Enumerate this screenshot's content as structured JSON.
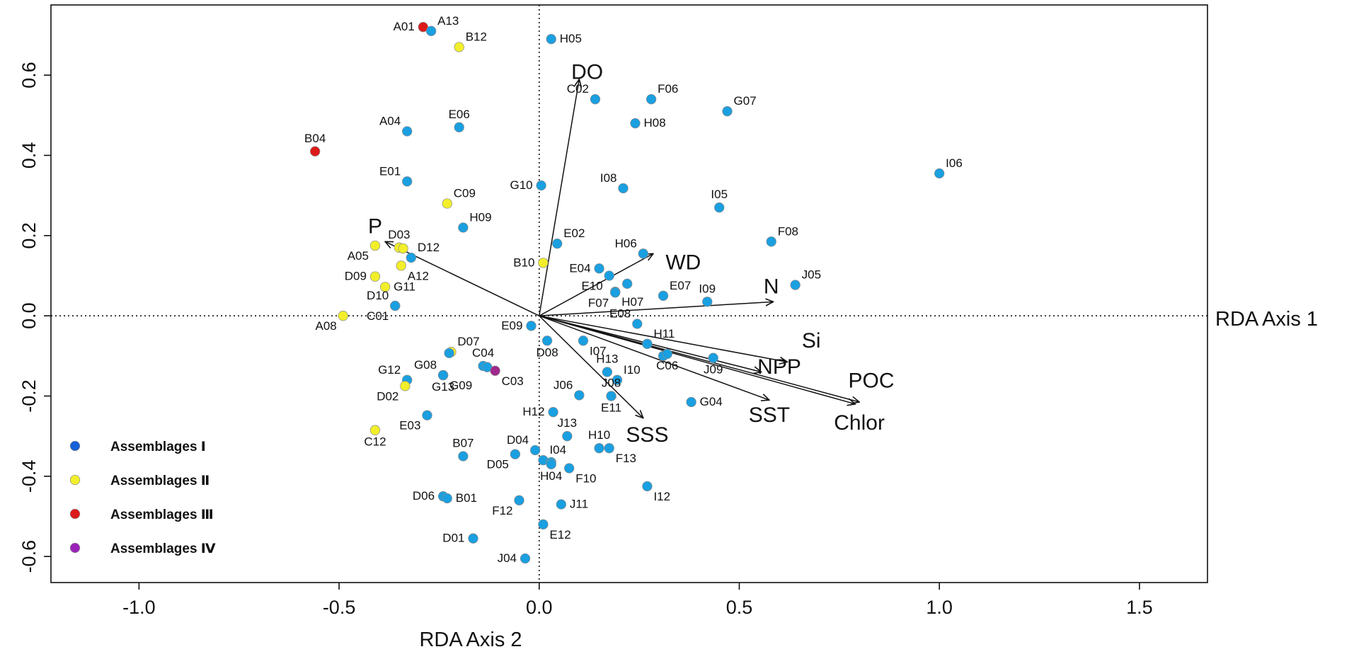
{
  "chart_data": {
    "type": "scatter",
    "title": "",
    "xlabel": "RDA Axis 2",
    "ylabel": "RDA Axis 1",
    "xlim": [
      -1.22,
      1.67
    ],
    "ylim": [
      -0.665,
      0.775
    ],
    "xticks": [
      {
        "value": -1.0,
        "label": "-1.0"
      },
      {
        "value": -0.5,
        "label": "-0.5"
      },
      {
        "value": 0.0,
        "label": "0.0"
      },
      {
        "value": 0.5,
        "label": "0.5"
      },
      {
        "value": 1.0,
        "label": "1.0"
      },
      {
        "value": 1.5,
        "label": "1.5"
      }
    ],
    "yticks": [
      {
        "value": -0.6,
        "label": "-0.6"
      },
      {
        "value": -0.4,
        "label": "-0.4"
      },
      {
        "value": -0.2,
        "label": "-0.2"
      },
      {
        "value": 0.0,
        "label": "0.0"
      },
      {
        "value": 0.2,
        "label": "0.2"
      },
      {
        "value": 0.4,
        "label": "0.4"
      },
      {
        "value": 0.6,
        "label": "0.6"
      }
    ],
    "reference_lines": {
      "x": 0,
      "y": 0,
      "style": "dotted"
    },
    "groups": [
      {
        "id": "I",
        "name": "Assemblages Ⅰ",
        "color": "#1a9fe0",
        "legend_color": "#1560d8"
      },
      {
        "id": "II",
        "name": "Assemblages Ⅱ",
        "color": "#f2ef2a",
        "legend_color": "#f2ef2a"
      },
      {
        "id": "III",
        "name": "Assemblages Ⅲ",
        "color": "#dd1a1a",
        "legend_color": "#dd1a1a"
      },
      {
        "id": "IV",
        "name": "Assemblages Ⅳ",
        "color": "#a0288c",
        "legend_color": "#9a22b8"
      }
    ],
    "legend_position": "bottom-left",
    "points": [
      {
        "label": "A01",
        "x": -0.29,
        "y": 0.72,
        "group": "III",
        "anchor": "w"
      },
      {
        "label": "A13",
        "x": -0.27,
        "y": 0.71,
        "group": "I",
        "anchor": "ne"
      },
      {
        "label": "B12",
        "x": -0.2,
        "y": 0.67,
        "group": "II",
        "anchor": "ne"
      },
      {
        "label": "H05",
        "x": 0.03,
        "y": 0.69,
        "group": "I",
        "anchor": "e"
      },
      {
        "label": "C02",
        "x": 0.14,
        "y": 0.54,
        "group": "I",
        "anchor": "nw"
      },
      {
        "label": "F06",
        "x": 0.28,
        "y": 0.54,
        "group": "I",
        "anchor": "ne"
      },
      {
        "label": "H08",
        "x": 0.24,
        "y": 0.48,
        "group": "I",
        "anchor": "e"
      },
      {
        "label": "G07",
        "x": 0.47,
        "y": 0.51,
        "group": "I",
        "anchor": "ne"
      },
      {
        "label": "A04",
        "x": -0.33,
        "y": 0.46,
        "group": "I",
        "anchor": "nw"
      },
      {
        "label": "E06",
        "x": -0.2,
        "y": 0.47,
        "group": "I",
        "anchor": "n"
      },
      {
        "label": "B04",
        "x": -0.56,
        "y": 0.41,
        "group": "III",
        "anchor": "n"
      },
      {
        "label": "I06",
        "x": 1.0,
        "y": 0.355,
        "group": "I",
        "anchor": "ne"
      },
      {
        "label": "E01",
        "x": -0.33,
        "y": 0.335,
        "group": "I",
        "anchor": "nw"
      },
      {
        "label": "C09",
        "x": -0.23,
        "y": 0.28,
        "group": "II",
        "anchor": "ne"
      },
      {
        "label": "G10",
        "x": 0.005,
        "y": 0.325,
        "group": "I",
        "anchor": "w"
      },
      {
        "label": "I08",
        "x": 0.21,
        "y": 0.318,
        "group": "I",
        "anchor": "nw"
      },
      {
        "label": "I05",
        "x": 0.45,
        "y": 0.27,
        "group": "I",
        "anchor": "n"
      },
      {
        "label": "H09",
        "x": -0.19,
        "y": 0.22,
        "group": "I",
        "anchor": "ne"
      },
      {
        "label": "F08",
        "x": 0.58,
        "y": 0.185,
        "group": "I",
        "anchor": "ne"
      },
      {
        "label": "D03",
        "x": -0.35,
        "y": 0.17,
        "group": "II",
        "anchor": "n"
      },
      {
        "label": "D12",
        "x": -0.32,
        "y": 0.145,
        "group": "I",
        "anchor": "ne"
      },
      {
        "label": "E02",
        "x": 0.045,
        "y": 0.18,
        "group": "I",
        "anchor": "ne"
      },
      {
        "label": "A05",
        "x": -0.41,
        "y": 0.175,
        "group": "II",
        "anchor": "sw"
      },
      {
        "label": "",
        "x": -0.34,
        "y": 0.168,
        "group": "II",
        "anchor": "n"
      },
      {
        "label": "A12",
        "x": -0.345,
        "y": 0.125,
        "group": "II",
        "anchor": "se"
      },
      {
        "label": "B10",
        "x": 0.01,
        "y": 0.132,
        "group": "II",
        "anchor": "w"
      },
      {
        "label": "H06",
        "x": 0.26,
        "y": 0.155,
        "group": "I",
        "anchor": "nw"
      },
      {
        "label": "E04",
        "x": 0.15,
        "y": 0.118,
        "group": "I",
        "anchor": "w"
      },
      {
        "label": "J05",
        "x": 0.64,
        "y": 0.077,
        "group": "I",
        "anchor": "ne"
      },
      {
        "label": "D09",
        "x": -0.41,
        "y": 0.098,
        "group": "II",
        "anchor": "w"
      },
      {
        "label": "G11",
        "x": -0.385,
        "y": 0.072,
        "group": "II",
        "anchor": "e"
      },
      {
        "label": "E10",
        "x": 0.175,
        "y": 0.1,
        "group": "I",
        "anchor": "sw"
      },
      {
        "label": "",
        "x": 0.22,
        "y": 0.08,
        "group": "I",
        "anchor": "n"
      },
      {
        "label": "H07",
        "x": 0.19,
        "y": 0.06,
        "group": "I",
        "anchor": "se"
      },
      {
        "label": "E07",
        "x": 0.31,
        "y": 0.05,
        "group": "I",
        "anchor": "ne"
      },
      {
        "label": "I09",
        "x": 0.42,
        "y": 0.035,
        "group": "I",
        "anchor": "n"
      },
      {
        "label": "F07",
        "x": 0.19,
        "y": 0.058,
        "group": "I",
        "anchor": "sw"
      },
      {
        "label": "D10",
        "x": -0.36,
        "y": 0.025,
        "group": "I",
        "anchor": "nw"
      },
      {
        "label": "A08",
        "x": -0.49,
        "y": 0.0,
        "group": "II",
        "anchor": "sw"
      },
      {
        "label": "C01",
        "x": -0.36,
        "y": 0.025,
        "group": "I",
        "anchor": "sw"
      },
      {
        "label": "E09",
        "x": -0.02,
        "y": -0.025,
        "group": "I",
        "anchor": "w"
      },
      {
        "label": "E08",
        "x": 0.245,
        "y": -0.02,
        "group": "I",
        "anchor": "nw"
      },
      {
        "label": "H11",
        "x": 0.27,
        "y": -0.07,
        "group": "I",
        "anchor": "ne"
      },
      {
        "label": "D07",
        "x": -0.22,
        "y": -0.09,
        "group": "II",
        "anchor": "ne"
      },
      {
        "label": "",
        "x": -0.225,
        "y": -0.093,
        "group": "I",
        "anchor": "n"
      },
      {
        "label": "I07",
        "x": 0.11,
        "y": -0.062,
        "group": "I",
        "anchor": "se"
      },
      {
        "label": "D08",
        "x": 0.02,
        "y": -0.062,
        "group": "I",
        "anchor": "s"
      },
      {
        "label": "",
        "x": 0.31,
        "y": -0.1,
        "group": "I",
        "anchor": "n"
      },
      {
        "label": "C06",
        "x": 0.32,
        "y": -0.095,
        "group": "I",
        "anchor": "s"
      },
      {
        "label": "J09",
        "x": 0.435,
        "y": -0.105,
        "group": "I",
        "anchor": "s"
      },
      {
        "label": "C04",
        "x": -0.14,
        "y": -0.125,
        "group": "I",
        "anchor": "n"
      },
      {
        "label": "",
        "x": -0.13,
        "y": -0.128,
        "group": "I",
        "anchor": "n"
      },
      {
        "label": "C03",
        "x": -0.11,
        "y": -0.137,
        "group": "IV",
        "anchor": "se"
      },
      {
        "label": "G08",
        "x": -0.24,
        "y": -0.148,
        "group": "I",
        "anchor": "nw"
      },
      {
        "label": "H13",
        "x": 0.17,
        "y": -0.14,
        "group": "I",
        "anchor": "n"
      },
      {
        "label": "I10",
        "x": 0.195,
        "y": -0.16,
        "group": "I",
        "anchor": "ne"
      },
      {
        "label": "G12",
        "x": -0.33,
        "y": -0.16,
        "group": "I",
        "anchor": "nw"
      },
      {
        "label": "G09",
        "x": -0.24,
        "y": -0.148,
        "group": "I",
        "anchor": "se"
      },
      {
        "label": "D02",
        "x": -0.335,
        "y": -0.175,
        "group": "II",
        "anchor": "sw"
      },
      {
        "label": "G13",
        "x": -0.24,
        "y": -0.148,
        "group": "I",
        "anchor": "s"
      },
      {
        "label": "J06",
        "x": 0.1,
        "y": -0.198,
        "group": "I",
        "anchor": "nw"
      },
      {
        "label": "J08",
        "x": 0.18,
        "y": -0.2,
        "group": "I",
        "anchor": "n"
      },
      {
        "label": "E11",
        "x": 0.18,
        "y": -0.2,
        "group": "I",
        "anchor": "s"
      },
      {
        "label": "G04",
        "x": 0.38,
        "y": -0.215,
        "group": "I",
        "anchor": "e"
      },
      {
        "label": "H12",
        "x": 0.035,
        "y": -0.24,
        "group": "I",
        "anchor": "w"
      },
      {
        "label": "E03",
        "x": -0.28,
        "y": -0.248,
        "group": "I",
        "anchor": "sw"
      },
      {
        "label": "C12",
        "x": -0.41,
        "y": -0.285,
        "group": "II",
        "anchor": "s"
      },
      {
        "label": "J13",
        "x": 0.07,
        "y": -0.3,
        "group": "I",
        "anchor": "n"
      },
      {
        "label": "D04",
        "x": -0.01,
        "y": -0.335,
        "group": "I",
        "anchor": "nw"
      },
      {
        "label": "H10",
        "x": 0.15,
        "y": -0.33,
        "group": "I",
        "anchor": "n"
      },
      {
        "label": "F13",
        "x": 0.175,
        "y": -0.33,
        "group": "I",
        "anchor": "se"
      },
      {
        "label": "B07",
        "x": -0.19,
        "y": -0.35,
        "group": "I",
        "anchor": "n"
      },
      {
        "label": "I04",
        "x": 0.01,
        "y": -0.36,
        "group": "I",
        "anchor": "ne"
      },
      {
        "label": "",
        "x": 0.03,
        "y": -0.365,
        "group": "I",
        "anchor": "n"
      },
      {
        "label": "D05",
        "x": -0.06,
        "y": -0.345,
        "group": "I",
        "anchor": "sw"
      },
      {
        "label": "H04",
        "x": 0.03,
        "y": -0.37,
        "group": "I",
        "anchor": "s"
      },
      {
        "label": "F10",
        "x": 0.075,
        "y": -0.38,
        "group": "I",
        "anchor": "se"
      },
      {
        "label": "I12",
        "x": 0.27,
        "y": -0.425,
        "group": "I",
        "anchor": "se"
      },
      {
        "label": "D06",
        "x": -0.24,
        "y": -0.45,
        "group": "I",
        "anchor": "w"
      },
      {
        "label": "B01",
        "x": -0.23,
        "y": -0.455,
        "group": "I",
        "anchor": "e"
      },
      {
        "label": "F12",
        "x": -0.05,
        "y": -0.46,
        "group": "I",
        "anchor": "sw"
      },
      {
        "label": "J11",
        "x": 0.055,
        "y": -0.47,
        "group": "I",
        "anchor": "e"
      },
      {
        "label": "E12",
        "x": 0.01,
        "y": -0.52,
        "group": "I",
        "anchor": "se"
      },
      {
        "label": "D01",
        "x": -0.165,
        "y": -0.555,
        "group": "I",
        "anchor": "w"
      },
      {
        "label": "J04",
        "x": -0.035,
        "y": -0.605,
        "group": "I",
        "anchor": "w"
      }
    ],
    "vectors": [
      {
        "label": "DO",
        "x": 0.1,
        "y": 0.59,
        "lx": 0.12,
        "ly": 0.605
      },
      {
        "label": "P",
        "x": -0.385,
        "y": 0.185,
        "lx": -0.41,
        "ly": 0.22
      },
      {
        "label": "WD",
        "x": 0.285,
        "y": 0.155,
        "lx": 0.36,
        "ly": 0.13
      },
      {
        "label": "N",
        "x": 0.585,
        "y": 0.035,
        "lx": 0.58,
        "ly": 0.07
      },
      {
        "label": "Si",
        "x": 0.62,
        "y": -0.115,
        "lx": 0.68,
        "ly": -0.065
      },
      {
        "label": "NPP",
        "x": 0.555,
        "y": -0.14,
        "lx": 0.6,
        "ly": -0.13
      },
      {
        "label": "POC",
        "x": 0.8,
        "y": -0.215,
        "lx": 0.83,
        "ly": -0.165
      },
      {
        "label": "Chlor",
        "x": 0.79,
        "y": -0.22,
        "lx": 0.8,
        "ly": -0.27
      },
      {
        "label": "SST",
        "x": 0.575,
        "y": -0.21,
        "lx": 0.575,
        "ly": -0.25
      },
      {
        "label": "SSS",
        "x": 0.26,
        "y": -0.255,
        "lx": 0.27,
        "ly": -0.3
      }
    ]
  }
}
